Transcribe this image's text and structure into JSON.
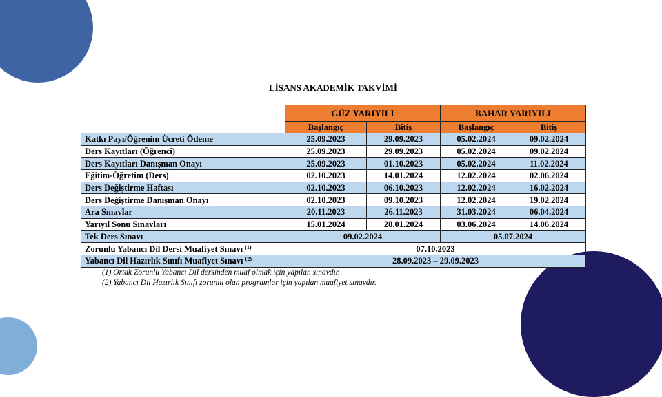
{
  "title": "LİSANS AKADEMİK TAKVİMİ",
  "table": {
    "groups": [
      "GÜZ YARIYILI",
      "BAHAR YARIYILI"
    ],
    "subheaders": [
      "Başlangıç",
      "Bitiş",
      "Başlangıç",
      "Bitiş"
    ],
    "rows": [
      {
        "label": "Katkı Payı/Öğrenim Ücreti Ödeme",
        "cells": [
          "25.09.2023",
          "29.09.2023",
          "05.02.2024",
          "09.02.2024"
        ]
      },
      {
        "label": "Ders Kayıtları (Öğrenci)",
        "cells": [
          "25.09.2023",
          "29.09.2023",
          "05.02.2024",
          "09.02.2024"
        ]
      },
      {
        "label": "Ders Kayıtları Danışman Onayı",
        "cells": [
          "25.09.2023",
          "01.10.2023",
          "05.02.2024",
          "11.02.2024"
        ]
      },
      {
        "label": "Eğitim-Öğretim (Ders)",
        "cells": [
          "02.10.2023",
          "14.01.2024",
          "12.02.2024",
          "02.06.2024"
        ]
      },
      {
        "label": "Ders Değiştirme Haftası",
        "cells": [
          "02.10.2023",
          "06.10.2023",
          "12.02.2024",
          "16.02.2024"
        ]
      },
      {
        "label": "Ders Değiştirme Danışman Onayı",
        "cells": [
          "02.10.2023",
          "09.10.2023",
          "12.02.2024",
          "19.02.2024"
        ]
      },
      {
        "label": "Ara Sınavlar",
        "cells": [
          "20.11.2023",
          "26.11.2023",
          "31.03.2024",
          "06.04.2024"
        ]
      },
      {
        "label": "Yarıyıl Sonu Sınavları",
        "cells": [
          "15.01.2024",
          "28.01.2024",
          "03.06.2024",
          "14.06.2024"
        ]
      },
      {
        "label": "Tek Ders Sınavı",
        "cells": [
          "09.02.2024",
          "05.07.2024"
        ]
      },
      {
        "label": "Zorunlu Yabancı Dil Dersi Muafiyet Sınavı",
        "note": "(1)",
        "cells": [
          "07.10.2023"
        ]
      },
      {
        "label": "Yabancı Dil Hazırlık Sınıfı Muafiyet Sınavı",
        "note": "(2)",
        "cells": [
          "28.09.2023 – 29.09.2023"
        ]
      }
    ]
  },
  "footnotes": [
    "(1) Ortak Zorunlu Yabancı Dil dersinden muaf olmak için yapılan sınavdır.",
    "(2) Yabancı Dil Hazırlık Sınıfı zorunlu olan programlar için yapılan muafiyet sınavdır."
  ]
}
